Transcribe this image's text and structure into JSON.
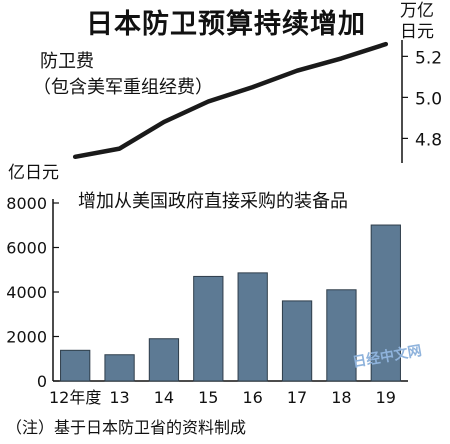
{
  "title": "日本防卫预算持续增加",
  "watermark_text": "日经中文网",
  "note": "（注）基于日本防卫省的资料制成",
  "chart_data": [
    {
      "type": "line",
      "series_label_lines": [
        "防卫费",
        "（包含美军重组经费）"
      ],
      "unit_lines": [
        "万亿",
        "日元"
      ],
      "x": [
        "12年度",
        "13",
        "14",
        "15",
        "16",
        "17",
        "18",
        "19"
      ],
      "values": [
        4.71,
        4.75,
        4.88,
        4.98,
        5.05,
        5.13,
        5.19,
        5.26
      ],
      "y_ticks": [
        "4.8",
        "5.0",
        "5.2"
      ],
      "ylim": [
        4.68,
        5.27
      ],
      "color": "#1a1a1a"
    },
    {
      "type": "bar",
      "title": "增加从美国政府直接采购的装备品",
      "ylabel": "亿日元",
      "categories": [
        "12年度",
        "13",
        "14",
        "15",
        "16",
        "17",
        "18",
        "19"
      ],
      "values": [
        1380,
        1180,
        1900,
        4700,
        4860,
        3600,
        4100,
        7010
      ],
      "y_ticks": [
        "0",
        "2000",
        "4000",
        "6000",
        "8000"
      ],
      "ylim": [
        0,
        8000
      ],
      "color": "#5d7a94"
    }
  ]
}
